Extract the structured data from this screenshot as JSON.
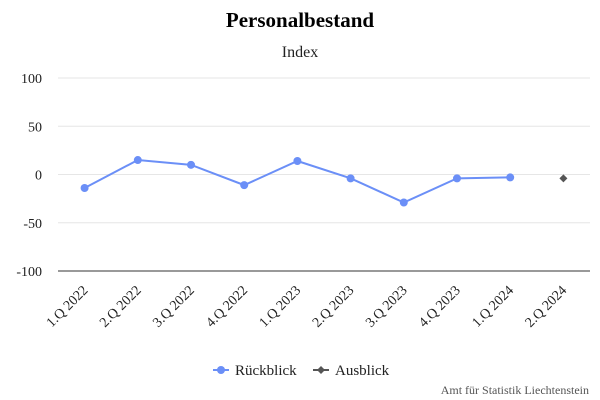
{
  "chart_data": {
    "type": "line",
    "title": "Personalbestand",
    "subtitle": "Index",
    "categories": [
      "1.Q 2022",
      "2.Q 2022",
      "3.Q 2022",
      "4.Q 2022",
      "1.Q 2023",
      "2.Q 2023",
      "3.Q 2023",
      "4.Q 2023",
      "1.Q 2024",
      "2.Q 2024"
    ],
    "ylim": [
      -100,
      100
    ],
    "yticks": [
      100,
      50,
      0,
      -50,
      -100
    ],
    "grid": true,
    "legend_position": "bottom-center",
    "series": [
      {
        "name": "Rückblick",
        "color": "#6b8ff7",
        "marker": "circle",
        "values": [
          -14,
          15,
          10,
          -11,
          14,
          -4,
          -29,
          -4,
          -3,
          null
        ]
      },
      {
        "name": "Ausblick",
        "color": "#555555",
        "marker": "diamond",
        "values": [
          null,
          null,
          null,
          null,
          null,
          null,
          null,
          null,
          null,
          -4
        ]
      }
    ],
    "credit": "Amt für Statistik Liechtenstein"
  }
}
